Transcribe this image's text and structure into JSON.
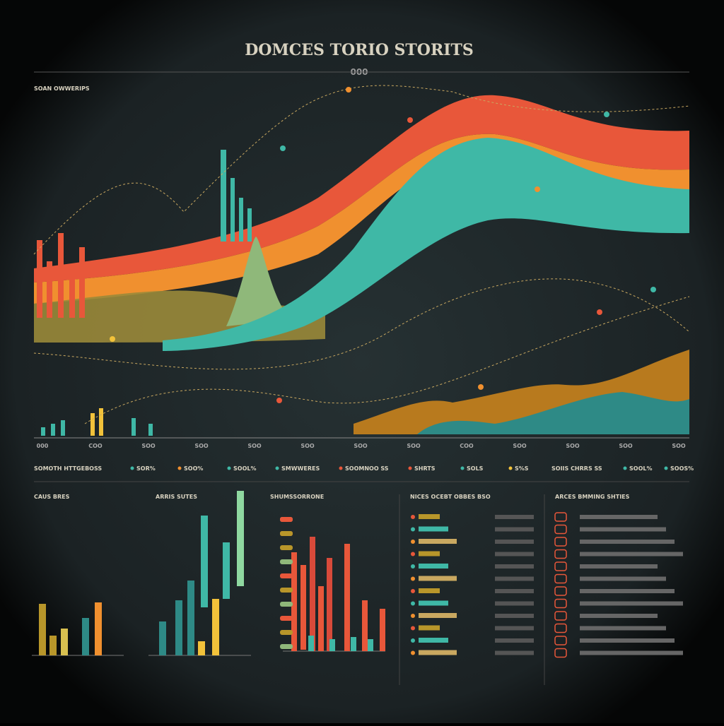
{
  "header": {
    "title": "DOMCES TORIO STORITS",
    "subtitle": "000",
    "section": "SOAN OWWERIPS"
  },
  "axis_labels": [
    "000",
    "COO",
    "SOO",
    "SOO",
    "SOO",
    "SOO",
    "SOO",
    "SOO",
    "COO",
    "SOO",
    "SOO",
    "SOO",
    "SOO"
  ],
  "legend": [
    "SOMOTH HTTGEBOSS",
    "SOR%",
    "SOO%",
    "SOOL%",
    "SMWWERES",
    "SOOMNOO SS",
    "SHRTS",
    "SOLS",
    "S%S",
    "SOIIS CHRRS SS",
    "SOOL%",
    "SOOS%"
  ],
  "panels": [
    "CAUS BRES",
    "ARRIS SUTES",
    "SHUMSSORRONE",
    "NICES OCEBT OBBES BSO",
    "ARCES BMMING SHTIES"
  ]
}
